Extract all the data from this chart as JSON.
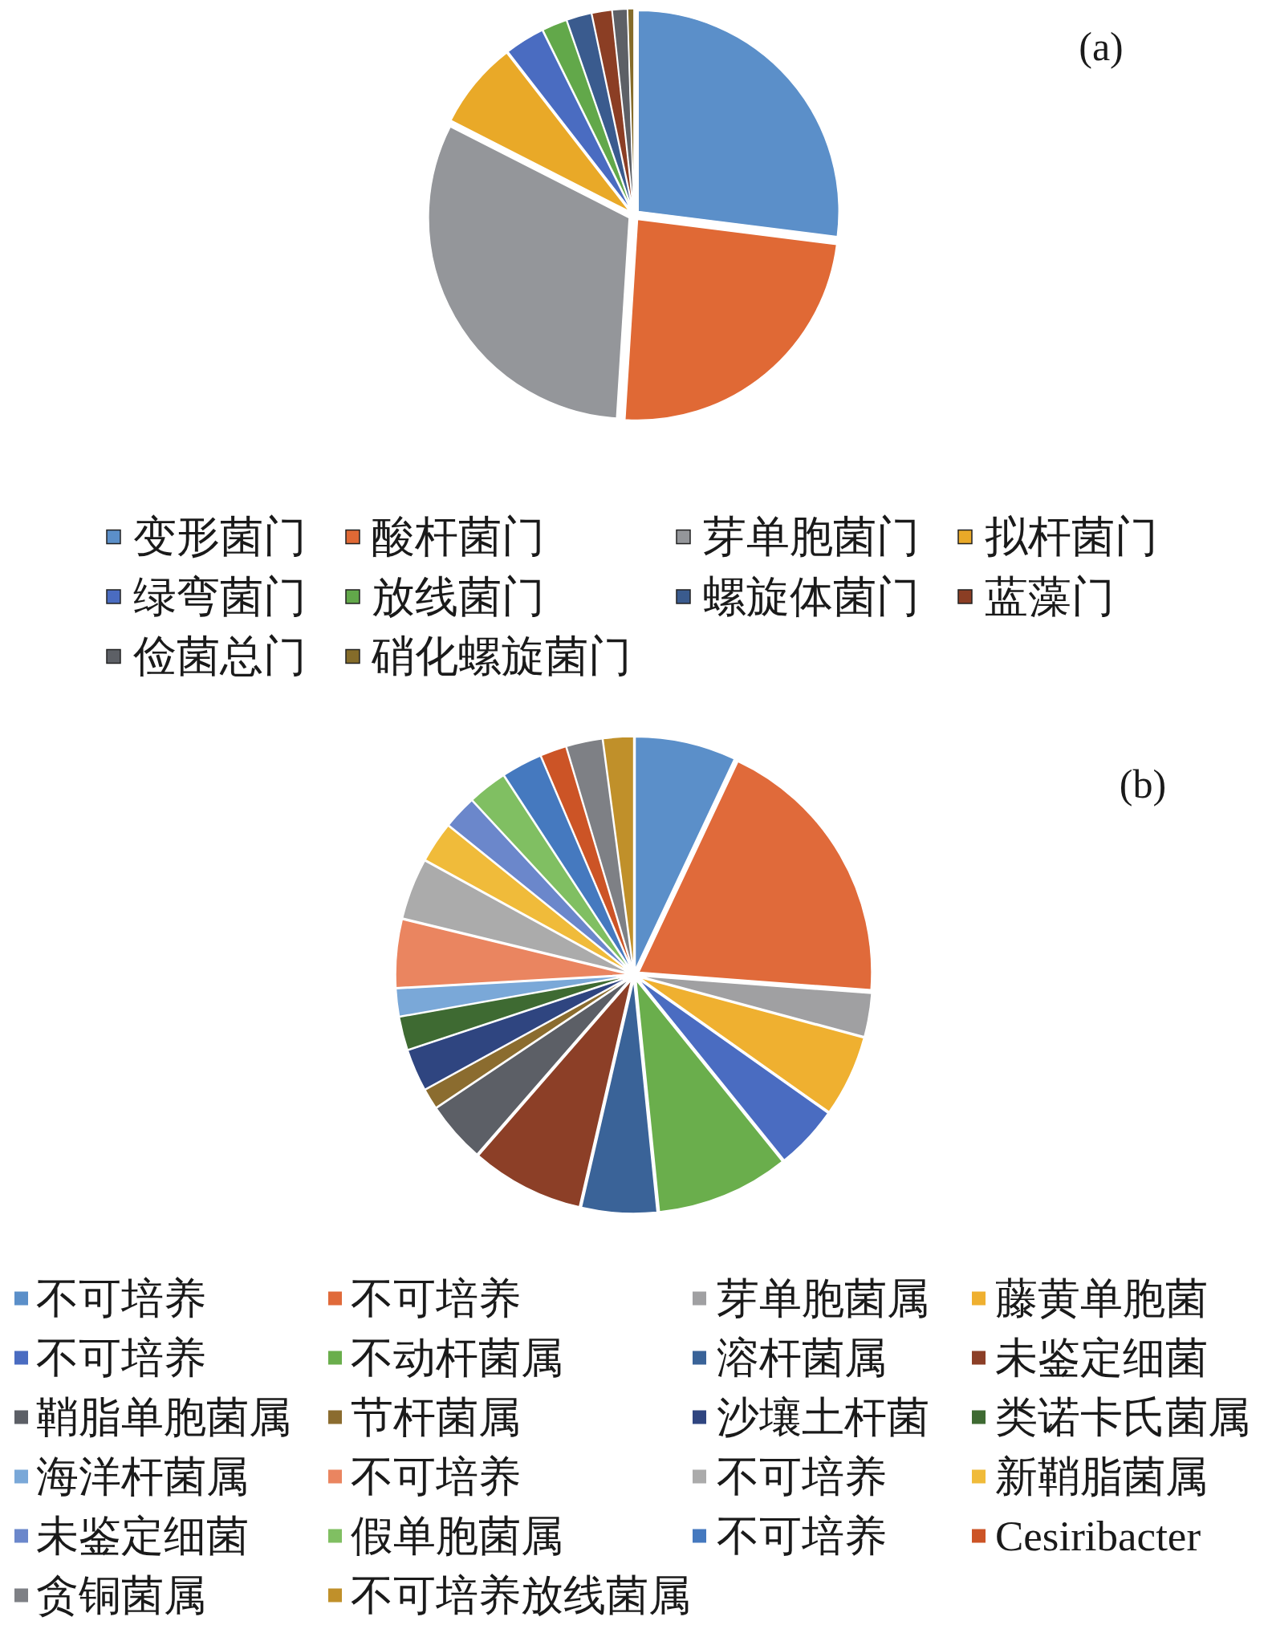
{
  "chart_data": [
    {
      "type": "pie",
      "title": "(a)",
      "categories": [
        "变形菌门",
        "酸杆菌门",
        "芽单胞菌门",
        "拟杆菌门",
        "绿弯菌门",
        "放线菌门",
        "螺旋体菌门",
        "蓝藻门",
        "俭菌总门",
        "硝化螺旋菌门"
      ],
      "values": [
        27,
        24,
        31.5,
        7,
        3.2,
        2,
        2,
        1.6,
        1.2,
        0.5
      ],
      "colors": [
        "#5b8fc9",
        "#e06935",
        "#94969a",
        "#e9a928",
        "#4a6cc1",
        "#62a84a",
        "#3a5b8e",
        "#8b3e24",
        "#5d6066",
        "#856c2a"
      ],
      "legend": "bottom"
    },
    {
      "type": "pie",
      "title": "(b)",
      "categories": [
        "不可培养",
        "不可培养",
        "芽单胞菌属",
        "藤黄单胞菌",
        "不可培养",
        "不动杆菌属",
        "溶杆菌属",
        "未鉴定细菌",
        "鞘脂单胞菌属",
        "节杆菌属",
        "沙壤土杆菌",
        "类诺卡氏菌属",
        "海洋杆菌属",
        "不可培养",
        "不可培养",
        "新鞘脂菌属",
        "未鉴定细菌",
        "假单胞菌属",
        "不可培养",
        "Cesiribacter",
        "贪铜菌属",
        "不可培养放线菌属"
      ],
      "values": [
        7,
        19.2,
        3,
        5.6,
        4.4,
        9.2,
        5.2,
        7.8,
        4.2,
        1.4,
        2.9,
        2.3,
        1.9,
        4.7,
        4.2,
        2.8,
        2.3,
        2.7,
        2.8,
        1.8,
        2.5,
        2.1
      ],
      "colors": [
        "#5b8fc9",
        "#e06a3a",
        "#a0a0a2",
        "#efb030",
        "#4a6cc1",
        "#6aae4c",
        "#3a6398",
        "#8c3f27",
        "#5c5f66",
        "#8b6c2f",
        "#2f4580",
        "#3e6a32",
        "#7aa8d8",
        "#ea8560",
        "#ababab",
        "#f0bb3a",
        "#6b87cb",
        "#80bf62",
        "#4579bf",
        "#cc5426",
        "#7e8085",
        "#c0902a"
      ],
      "legend": "bottom"
    }
  ]
}
